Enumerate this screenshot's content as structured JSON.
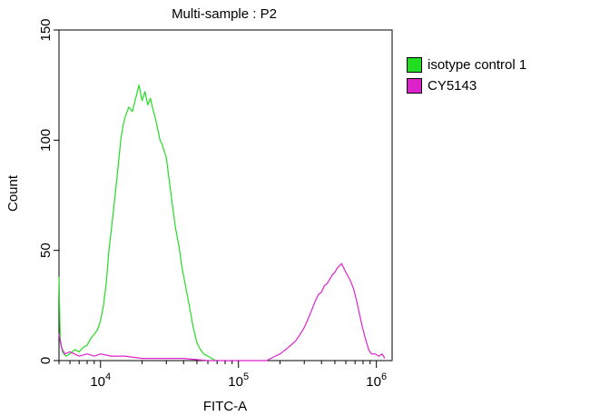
{
  "chart_data": {
    "type": "line",
    "title": "Multi-sample : P2",
    "xlabel": "FITC-A",
    "ylabel": "Count",
    "x_scale": "log",
    "xlim": [
      5000,
      1300000
    ],
    "ylim": [
      0,
      150
    ],
    "x_ticks": [
      {
        "value": 10000,
        "base": "10",
        "exp": "4"
      },
      {
        "value": 100000,
        "base": "10",
        "exp": "5"
      },
      {
        "value": 1000000,
        "base": "10",
        "exp": "6"
      }
    ],
    "y_ticks": [
      0,
      50,
      100,
      150
    ],
    "legend": "right",
    "series": [
      {
        "name": "isotype control 1",
        "color": "#22dd22",
        "points": [
          [
            5000,
            38
          ],
          [
            5100,
            10
          ],
          [
            5300,
            4
          ],
          [
            5600,
            2
          ],
          [
            6000,
            3
          ],
          [
            6500,
            5
          ],
          [
            7000,
            4
          ],
          [
            7500,
            6
          ],
          [
            8000,
            7
          ],
          [
            8500,
            10
          ],
          [
            9000,
            12
          ],
          [
            9500,
            14
          ],
          [
            10000,
            18
          ],
          [
            10500,
            25
          ],
          [
            11000,
            35
          ],
          [
            11500,
            50
          ],
          [
            12000,
            60
          ],
          [
            12500,
            70
          ],
          [
            13000,
            80
          ],
          [
            13500,
            90
          ],
          [
            14000,
            100
          ],
          [
            14500,
            106
          ],
          [
            15000,
            110
          ],
          [
            16000,
            115
          ],
          [
            17000,
            113
          ],
          [
            18000,
            119
          ],
          [
            19000,
            125
          ],
          [
            20000,
            118
          ],
          [
            21000,
            122
          ],
          [
            22000,
            116
          ],
          [
            23000,
            119
          ],
          [
            24000,
            114
          ],
          [
            25000,
            110
          ],
          [
            26000,
            105
          ],
          [
            27000,
            100
          ],
          [
            28000,
            98
          ],
          [
            29000,
            95
          ],
          [
            30000,
            92
          ],
          [
            31000,
            85
          ],
          [
            33000,
            72
          ],
          [
            35000,
            60
          ],
          [
            37000,
            52
          ],
          [
            39000,
            42
          ],
          [
            41000,
            35
          ],
          [
            44000,
            25
          ],
          [
            47000,
            15
          ],
          [
            50000,
            8
          ],
          [
            53000,
            5
          ],
          [
            56000,
            3
          ],
          [
            60000,
            2
          ],
          [
            64000,
            1
          ],
          [
            68000,
            0
          ]
        ]
      },
      {
        "name": "CY5143",
        "color": "#dd22cc",
        "points": [
          [
            5000,
            12
          ],
          [
            5200,
            6
          ],
          [
            5500,
            3
          ],
          [
            6000,
            4
          ],
          [
            7000,
            2
          ],
          [
            8000,
            3
          ],
          [
            9000,
            2
          ],
          [
            10000,
            3
          ],
          [
            12000,
            2
          ],
          [
            15000,
            2
          ],
          [
            20000,
            1
          ],
          [
            30000,
            1
          ],
          [
            40000,
            1
          ],
          [
            60000,
            0
          ],
          [
            100000,
            0
          ],
          [
            160000,
            0
          ],
          [
            185000,
            2
          ],
          [
            200000,
            3
          ],
          [
            220000,
            5
          ],
          [
            240000,
            7
          ],
          [
            260000,
            9
          ],
          [
            280000,
            12
          ],
          [
            300000,
            15
          ],
          [
            320000,
            19
          ],
          [
            340000,
            23
          ],
          [
            360000,
            27
          ],
          [
            380000,
            30
          ],
          [
            400000,
            31
          ],
          [
            420000,
            34
          ],
          [
            440000,
            35
          ],
          [
            460000,
            37
          ],
          [
            480000,
            39
          ],
          [
            500000,
            40
          ],
          [
            520000,
            42
          ],
          [
            540000,
            43
          ],
          [
            560000,
            44
          ],
          [
            580000,
            42
          ],
          [
            600000,
            40
          ],
          [
            640000,
            37
          ],
          [
            680000,
            33
          ],
          [
            720000,
            27
          ],
          [
            760000,
            20
          ],
          [
            800000,
            14
          ],
          [
            840000,
            9
          ],
          [
            880000,
            5
          ],
          [
            920000,
            3
          ],
          [
            980000,
            3
          ],
          [
            1040000,
            2
          ],
          [
            1100000,
            3
          ],
          [
            1150000,
            1
          ]
        ]
      }
    ]
  }
}
